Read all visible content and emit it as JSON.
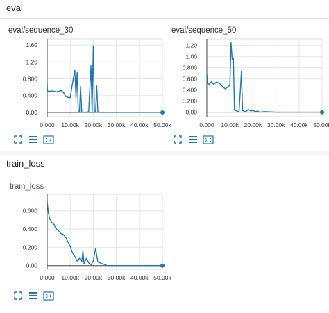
{
  "sections": {
    "eval": {
      "title": "eval"
    },
    "train": {
      "title": "train_loss"
    }
  },
  "charts": [
    {
      "title": "eval/sequence_30",
      "chart_data": {
        "type": "line",
        "x": [
          0,
          100,
          500,
          2000,
          4000,
          6000,
          7000,
          8000,
          9000,
          10000,
          11000,
          12000,
          12500,
          13000,
          13500,
          14000,
          14500,
          15000,
          15500,
          16000,
          17000,
          18000,
          19000,
          19500,
          20000,
          20500,
          21000,
          21500,
          22000,
          22500,
          23000,
          23500,
          24000,
          25000,
          30000,
          40000,
          50000
        ],
        "y": [
          0.7,
          0.52,
          0.5,
          0.51,
          0.49,
          0.52,
          0.48,
          0.38,
          0.36,
          0.35,
          0.7,
          1.0,
          0.35,
          0.95,
          0.02,
          0.0,
          0.62,
          0.0,
          0.01,
          0.0,
          0.0,
          0.02,
          1.12,
          0.0,
          1.58,
          0.01,
          0.0,
          0.63,
          0.0,
          0.01,
          0.0,
          0.0,
          0.0,
          0.0,
          0.0,
          0.0,
          0.0
        ],
        "xlim": [
          0,
          50000
        ],
        "ylim": [
          -0.1,
          1.75
        ],
        "xticks": [
          0,
          10000,
          20000,
          30000,
          40000,
          50000
        ],
        "xtick_labels": [
          "0.000",
          "10.00k",
          "20.00k",
          "30.00k",
          "40.00k",
          "50.00k"
        ],
        "yticks": [
          0,
          0.4,
          0.8,
          1.2,
          1.6
        ],
        "ytick_labels": [
          "0.00",
          "0.400",
          "0.800",
          "1.20",
          "1.60"
        ],
        "color": "#1f77b4"
      }
    },
    {
      "title": "eval/sequence_50",
      "chart_data": {
        "type": "line",
        "x": [
          0,
          300,
          1000,
          2000,
          3000,
          4000,
          5000,
          6000,
          7000,
          8000,
          9000,
          10000,
          10500,
          11000,
          11500,
          12000,
          12500,
          13000,
          14000,
          15000,
          15500,
          16000,
          17000,
          18000,
          19000,
          20000,
          21000,
          22000,
          23000,
          25000,
          30000,
          40000,
          50000
        ],
        "y": [
          0.7,
          0.52,
          0.5,
          0.55,
          0.5,
          0.54,
          0.53,
          0.5,
          0.45,
          0.42,
          0.45,
          0.48,
          1.25,
          0.95,
          0.98,
          0.05,
          0.03,
          0.02,
          0.01,
          0.73,
          0.03,
          0.02,
          0.01,
          0.05,
          0.02,
          0.03,
          0.01,
          0.02,
          0.0,
          0.01,
          0.0,
          0.0,
          0.0
        ],
        "xlim": [
          0,
          50000
        ],
        "ylim": [
          -0.08,
          1.32
        ],
        "xticks": [
          0,
          10000,
          20000,
          30000,
          40000,
          50000
        ],
        "xtick_labels": [
          "0.000",
          "10.00k",
          "20.00k",
          "30.00k",
          "40.00k",
          "50.00k"
        ],
        "yticks": [
          0,
          0.2,
          0.4,
          0.6,
          0.8,
          1.0,
          1.2
        ],
        "ytick_labels": [
          "0.00",
          "0.200",
          "0.400",
          "0.600",
          "0.800",
          "1.00",
          "1.20"
        ],
        "color": "#1f77b4"
      }
    },
    {
      "title": "train_loss",
      "chart_data": {
        "type": "line",
        "x": [
          0,
          200,
          500,
          1000,
          2000,
          3000,
          4000,
          5000,
          6000,
          7000,
          8000,
          9000,
          10000,
          11000,
          12000,
          13000,
          14000,
          15000,
          15500,
          16000,
          17000,
          18000,
          19000,
          20000,
          21000,
          22000,
          23000,
          24000,
          25000,
          26000,
          30000,
          40000,
          50000
        ],
        "y": [
          0.7,
          0.65,
          0.58,
          0.52,
          0.47,
          0.45,
          0.4,
          0.38,
          0.35,
          0.34,
          0.31,
          0.26,
          0.21,
          0.14,
          0.1,
          0.05,
          0.08,
          0.04,
          0.16,
          0.02,
          0.08,
          0.03,
          0.01,
          0.05,
          0.19,
          0.04,
          0.03,
          0.02,
          0.01,
          0.0,
          0.0,
          0.0,
          0.0
        ],
        "xlim": [
          0,
          50000
        ],
        "ylim": [
          -0.04,
          0.78
        ],
        "xticks": [
          0,
          10000,
          20000,
          30000,
          40000,
          50000
        ],
        "xtick_labels": [
          "0.000",
          "10.00k",
          "20.00k",
          "30.00k",
          "40.00k",
          "50.00k"
        ],
        "yticks": [
          0,
          0.2,
          0.4,
          0.6
        ],
        "ytick_labels": [
          "0.00",
          "0.200",
          "0.400",
          "0.600"
        ],
        "color": "#1f77b4"
      }
    }
  ],
  "toolbar_icons": [
    "expand-icon",
    "list-icon",
    "fit-domain-icon"
  ]
}
